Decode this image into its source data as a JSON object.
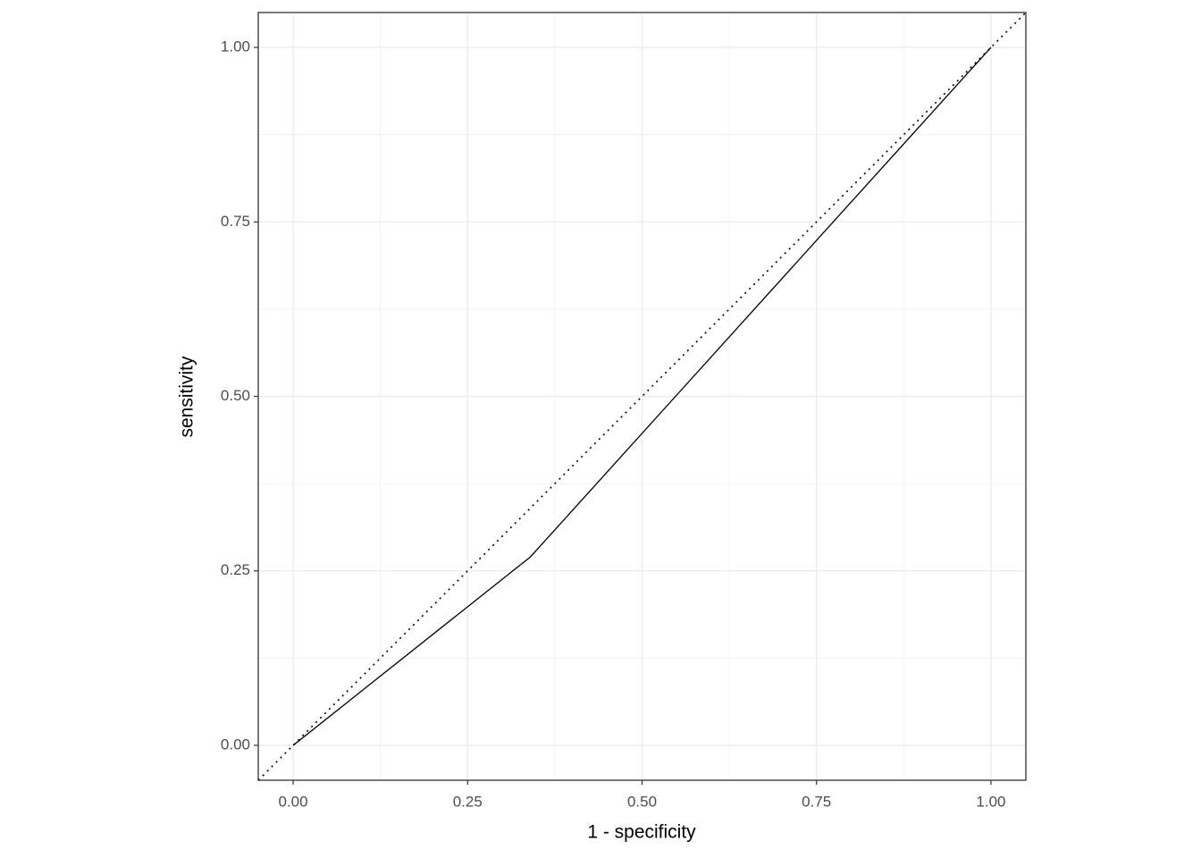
{
  "chart_data": {
    "type": "line",
    "x_label": "1 - specificity",
    "y_label": "sensitivity",
    "x": [
      0,
      0.34,
      1
    ],
    "series": [
      {
        "color": "#000000",
        "values": [
          0,
          0.27,
          1
        ]
      }
    ],
    "xlim": [
      -0.05,
      1.05
    ],
    "ylim": [
      -0.05,
      1.05
    ],
    "xticks": [
      {
        "value": 0,
        "label": "0.00"
      },
      {
        "value": 0.25,
        "label": "0.25"
      },
      {
        "value": 0.5,
        "label": "0.50"
      },
      {
        "value": 0.75,
        "label": "0.75"
      },
      {
        "value": 1,
        "label": "1.00"
      }
    ],
    "yticks": [
      {
        "value": 0,
        "label": "0.00"
      },
      {
        "value": 0.25,
        "label": "0.25"
      },
      {
        "value": 0.5,
        "label": "0.50"
      },
      {
        "value": 0.75,
        "label": "0.75"
      },
      {
        "value": 1,
        "label": "1.00"
      }
    ],
    "grid": true,
    "diagonal": true
  }
}
